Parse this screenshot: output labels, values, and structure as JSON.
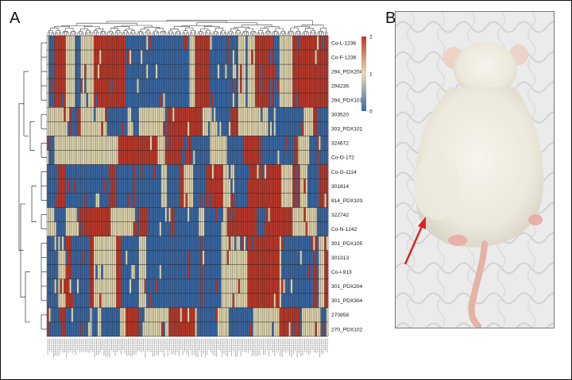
{
  "panels": {
    "a_label": "A",
    "b_label": "B"
  },
  "colors": {
    "low": "#3a6aa8",
    "mid": "#e6dcb4",
    "high": "#c0392b",
    "arrow": "#e02020",
    "fur": "#f1efe6",
    "tail": "#e9b9ad"
  },
  "chart_data": {
    "type": "heatmap",
    "rows": [
      "Co-L-1236",
      "Co-F-1236",
      "294_PDX204",
      "294236",
      "294_PDX101",
      "303520",
      "303_PDX101",
      "324672",
      "Co-O-172",
      "Co-G-1114",
      "301814",
      "814_PDX103",
      "322742",
      "Co-N-1242",
      "301_PDX105",
      "301313",
      "Co-I-913",
      "301_PDX204",
      "301_PDX304",
      "270858",
      "270_PDX102"
    ],
    "color_scale": {
      "min": 0,
      "mid": 1,
      "max": 2,
      "ticks": [
        "2",
        "1",
        "0"
      ]
    },
    "dendrogram_rows": true,
    "dendrogram_columns": true
  },
  "photo": {
    "subject": "mouse",
    "arrow_icon": "arrow-icon"
  }
}
